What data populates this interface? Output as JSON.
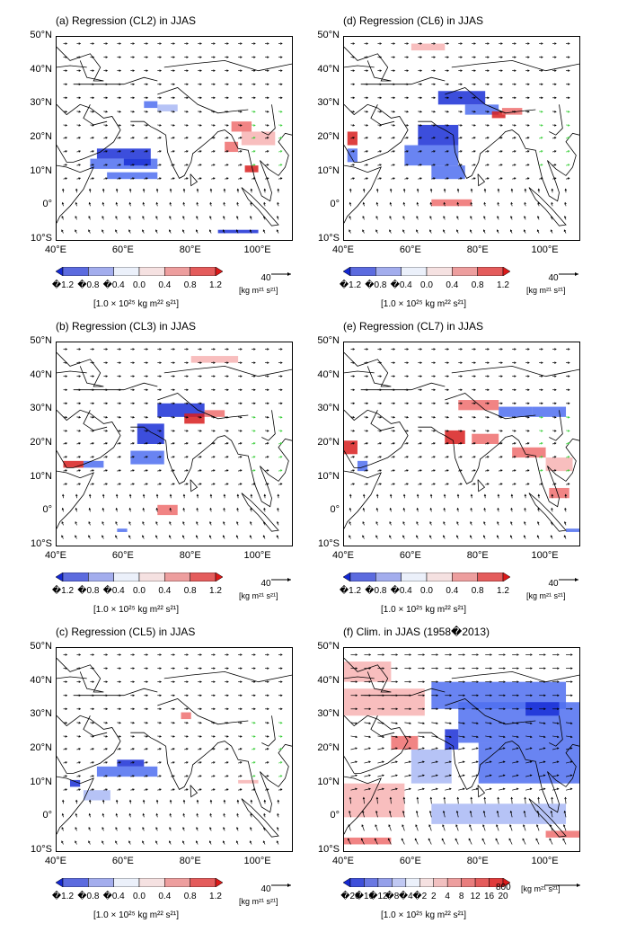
{
  "panels": [
    {
      "id": "a",
      "title": "(a) Regression (CL2) in JJAS",
      "cb_labels": [
        "�1.2",
        "�0.8",
        "�0.4",
        "0.0",
        "0.4",
        "0.8",
        "1.2"
      ],
      "units": "[1.0 × 10²⁵ kg m²² s²¹]",
      "ref_value": "40",
      "ref_units": "[kg m²¹ s²¹]",
      "field": "regression"
    },
    {
      "id": "d",
      "title": "(d) Regression (CL6) in JJAS",
      "cb_labels": [
        "�1.2",
        "�0.8",
        "�0.4",
        "0.0",
        "0.4",
        "0.8",
        "1.2"
      ],
      "units": "[1.0 × 10²⁵ kg m²² s²¹]",
      "ref_value": "40",
      "ref_units": "[kg m²¹ s²¹]",
      "field": "regression"
    },
    {
      "id": "b",
      "title": "(b) Regression (CL3) in JJAS",
      "cb_labels": [
        "�1.2",
        "�0.8",
        "�0.4",
        "0.0",
        "0.4",
        "0.8",
        "1.2"
      ],
      "units": "[1.0 × 10²⁵ kg m²² s²¹]",
      "ref_value": "40",
      "ref_units": "[kg m²¹ s²¹]",
      "field": "regression"
    },
    {
      "id": "e",
      "title": "(e) Regression (CL7) in JJAS",
      "cb_labels": [
        "�1.2",
        "�0.8",
        "�0.4",
        "0.0",
        "0.4",
        "0.8",
        "1.2"
      ],
      "units": "[1.0 × 10²⁵ kg m²² s²¹]",
      "ref_value": "40",
      "ref_units": "[kg m²¹ s²¹]",
      "field": "regression"
    },
    {
      "id": "c",
      "title": "(c) Regression (CL5) in JJAS",
      "cb_labels": [
        "�1.2",
        "�0.8",
        "�0.4",
        "0.0",
        "0.4",
        "0.8",
        "1.2"
      ],
      "units": "[1.0 × 10²⁵ kg m²² s²¹]",
      "ref_value": "40",
      "ref_units": "[kg m²¹ s²¹]",
      "field": "regression"
    },
    {
      "id": "f",
      "title": "(f) Clim. in JJAS (1958�2013)",
      "cb_labels": [
        "�20",
        "�16",
        "�12",
        "�8",
        "�4",
        "�2",
        "2",
        "4",
        "8",
        "12",
        "16",
        "20"
      ],
      "units": "[1.0 × 10²⁵ kg m²² s²¹]",
      "ref_value": "800",
      "ref_units": "[kg m²¹ s²¹]",
      "field": "climatology"
    }
  ],
  "lat_labels": [
    "50°N",
    "40°N",
    "30°N",
    "20°N",
    "10°N",
    "0°",
    "10°S"
  ],
  "lon_labels": [
    "40°E",
    "60°E",
    "80°E",
    "100°E"
  ],
  "colors": {
    "blue_dark": "#1a2fd6",
    "blue_mid": "#4f6ef0",
    "blue_light": "#a9b9f5",
    "red_light": "#f7b3b3",
    "red_mid": "#ef6f6f",
    "red_dark": "#d81e1e",
    "vector_sig": "#33cc33",
    "vector": "#000000"
  }
}
